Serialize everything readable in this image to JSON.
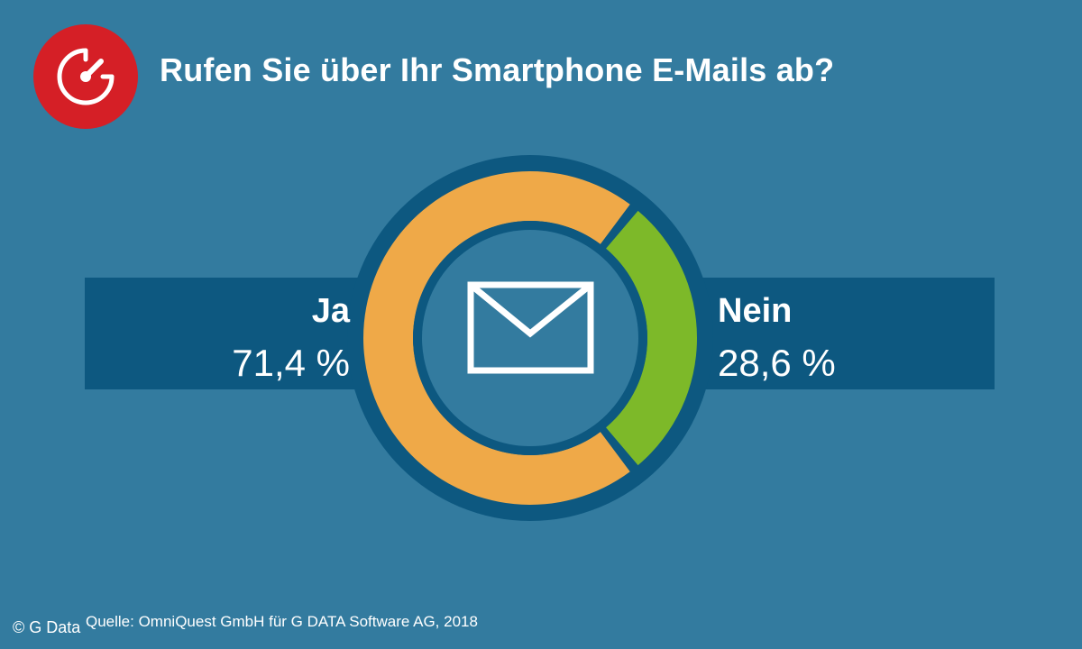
{
  "title": "Rufen Sie über Ihr Smartphone E-Mails ab?",
  "source": "Quelle: OmniQuest GmbH für G DATA Software AG, 2018",
  "copyright": "© G Data",
  "icons": {
    "logo": "speedometer-icon",
    "center": "envelope-icon"
  },
  "colors": {
    "background": "#337b9f",
    "band": "#0d5880",
    "logo_bg": "#d51f26",
    "ja": "#efa948",
    "nein": "#7db929"
  },
  "chart_data": {
    "type": "pie",
    "title": "Rufen Sie über Ihr Smartphone E-Mails ab?",
    "categories": [
      "Ja",
      "Nein"
    ],
    "values": [
      71.4,
      28.6
    ],
    "value_labels": [
      "71,4 %",
      "28,6 %"
    ],
    "unit": "%",
    "style": "donut",
    "legend": "none"
  }
}
